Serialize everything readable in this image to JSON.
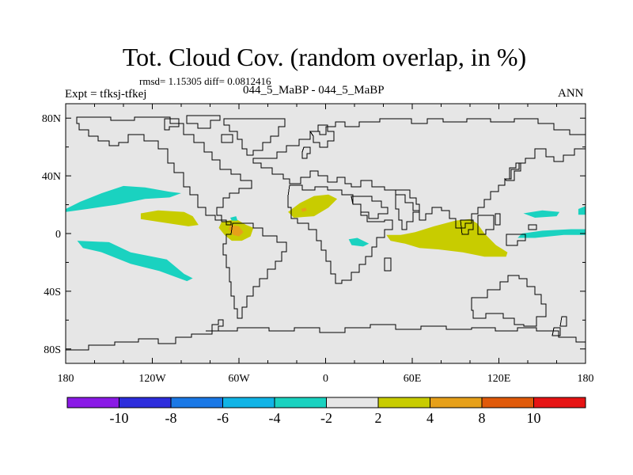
{
  "chart_data": {
    "type": "heatmap",
    "title": "Tot. Cloud Cov. (random overlap, in %)",
    "stats": "rmsd= 1.15305 diff= 0.0812416",
    "left_label": "Expt = tfksj-tfkej",
    "center_label": "044_5_MaBP - 044_5_MaBP",
    "right_label": "ANN",
    "x_ticks": [
      "180",
      "120W",
      "60W",
      "0",
      "60E",
      "120E",
      "180"
    ],
    "x_tick_values": [
      -180,
      -120,
      -60,
      0,
      60,
      120,
      180
    ],
    "y_ticks": [
      "80N",
      "40N",
      "0",
      "40S",
      "80S"
    ],
    "y_tick_values": [
      80,
      40,
      0,
      -40,
      -80
    ],
    "xlim": [
      -180,
      180
    ],
    "ylim": [
      -90,
      90
    ],
    "colorbar": {
      "labels": [
        "-10",
        "-8",
        "-6",
        "-4",
        "-2",
        "2",
        "4",
        "8",
        "10"
      ],
      "colors": [
        "#8a1ae6",
        "#2d2ddc",
        "#1a78e6",
        "#11b4e6",
        "#1ad2c0",
        "#e6e6e6",
        "#c8cc00",
        "#e6a01a",
        "#e05a0a",
        "#e61414"
      ]
    },
    "regions": [
      {
        "name": "north-pacific-negative",
        "level": "-4 to -2",
        "color": "#1ad2c0",
        "points": [
          [
            -180,
            17
          ],
          [
            -170,
            22
          ],
          [
            -155,
            28
          ],
          [
            -140,
            33
          ],
          [
            -125,
            32
          ],
          [
            -108,
            29
          ],
          [
            -100,
            28
          ],
          [
            -108,
            25
          ],
          [
            -125,
            24
          ],
          [
            -145,
            20
          ],
          [
            -165,
            17
          ],
          [
            -180,
            15
          ]
        ]
      },
      {
        "name": "south-pacific-negative",
        "level": "-4 to -2",
        "color": "#1ad2c0",
        "points": [
          [
            -172,
            -5
          ],
          [
            -150,
            -6
          ],
          [
            -135,
            -13
          ],
          [
            -110,
            -18
          ],
          [
            -98,
            -28
          ],
          [
            -92,
            -31
          ],
          [
            -96,
            -33
          ],
          [
            -115,
            -26
          ],
          [
            -135,
            -21
          ],
          [
            -155,
            -13
          ],
          [
            -168,
            -10
          ]
        ]
      },
      {
        "name": "east-pacific-positive",
        "level": "2 to 4",
        "color": "#c8cc00",
        "points": [
          [
            -128,
            14
          ],
          [
            -116,
            16
          ],
          [
            -98,
            15
          ],
          [
            -92,
            12
          ],
          [
            -88,
            6
          ],
          [
            -95,
            5
          ],
          [
            -115,
            8
          ],
          [
            -128,
            10
          ]
        ]
      },
      {
        "name": "amazon-positive",
        "level": "2 to 4",
        "color": "#c8cc00",
        "points": [
          [
            -72,
            8
          ],
          [
            -62,
            10
          ],
          [
            -55,
            6
          ],
          [
            -50,
            4
          ],
          [
            -52,
            -2
          ],
          [
            -58,
            -5
          ],
          [
            -65,
            -5
          ],
          [
            -70,
            -1
          ],
          [
            -74,
            4
          ]
        ]
      },
      {
        "name": "amazon-core",
        "level": "4 to 8",
        "color": "#e6a01a",
        "points": [
          [
            -66,
            6
          ],
          [
            -60,
            5
          ],
          [
            -57,
            1
          ],
          [
            -60,
            -2
          ],
          [
            -64,
            -1
          ],
          [
            -67,
            3
          ]
        ]
      },
      {
        "name": "sahara-positive",
        "level": "2 to 4",
        "color": "#c8cc00",
        "points": [
          [
            -26,
            15
          ],
          [
            -18,
            21
          ],
          [
            -8,
            26
          ],
          [
            2,
            27
          ],
          [
            8,
            24
          ],
          [
            2,
            18
          ],
          [
            -8,
            12
          ],
          [
            -22,
            11
          ]
        ]
      },
      {
        "name": "sahara-core",
        "level": "4 to 8",
        "color": "#e6a01a",
        "points": [
          [
            -17,
            17
          ],
          [
            -14,
            18
          ],
          [
            -13,
            16
          ],
          [
            -16,
            15
          ]
        ]
      },
      {
        "name": "indian-ocean-positive",
        "level": "2 to 4",
        "color": "#c8cc00",
        "points": [
          [
            42,
            -1
          ],
          [
            52,
            -1
          ],
          [
            62,
            1
          ],
          [
            75,
            5
          ],
          [
            90,
            9
          ],
          [
            100,
            10
          ],
          [
            105,
            7
          ],
          [
            110,
            0
          ],
          [
            118,
            -8
          ],
          [
            126,
            -13
          ],
          [
            125,
            -16
          ],
          [
            110,
            -16
          ],
          [
            95,
            -13
          ],
          [
            78,
            -11
          ],
          [
            65,
            -10
          ],
          [
            55,
            -7
          ],
          [
            45,
            -5
          ]
        ]
      },
      {
        "name": "west-pacific-negative",
        "level": "-4 to -2",
        "color": "#1ad2c0",
        "points": [
          [
            136,
            0
          ],
          [
            150,
            2
          ],
          [
            170,
            3
          ],
          [
            180,
            3
          ],
          [
            180,
            -1
          ],
          [
            165,
            -1
          ],
          [
            145,
            -3
          ],
          [
            133,
            -3
          ]
        ]
      },
      {
        "name": "north-west-pacific-negative",
        "level": "-4 to -2",
        "color": "#1ad2c0",
        "points": [
          [
            137,
            14
          ],
          [
            150,
            16
          ],
          [
            162,
            15
          ],
          [
            160,
            12
          ],
          [
            145,
            11
          ]
        ]
      },
      {
        "name": "atlantic-negative",
        "level": "-4 to -2",
        "color": "#1ad2c0",
        "points": [
          [
            16,
            -4
          ],
          [
            22,
            -3
          ],
          [
            30,
            -7
          ],
          [
            26,
            -9
          ],
          [
            18,
            -8
          ]
        ]
      },
      {
        "name": "caribbean-negative",
        "level": "-4 to -2",
        "color": "#1ad2c0",
        "points": [
          [
            -66,
            11
          ],
          [
            -62,
            12
          ],
          [
            -61,
            9
          ],
          [
            -65,
            9
          ]
        ]
      },
      {
        "name": "dateline-negative",
        "level": "-4 to -2",
        "color": "#1ad2c0",
        "points": [
          [
            175,
            17
          ],
          [
            180,
            19
          ],
          [
            180,
            13
          ],
          [
            175,
            13
          ]
        ]
      }
    ]
  }
}
